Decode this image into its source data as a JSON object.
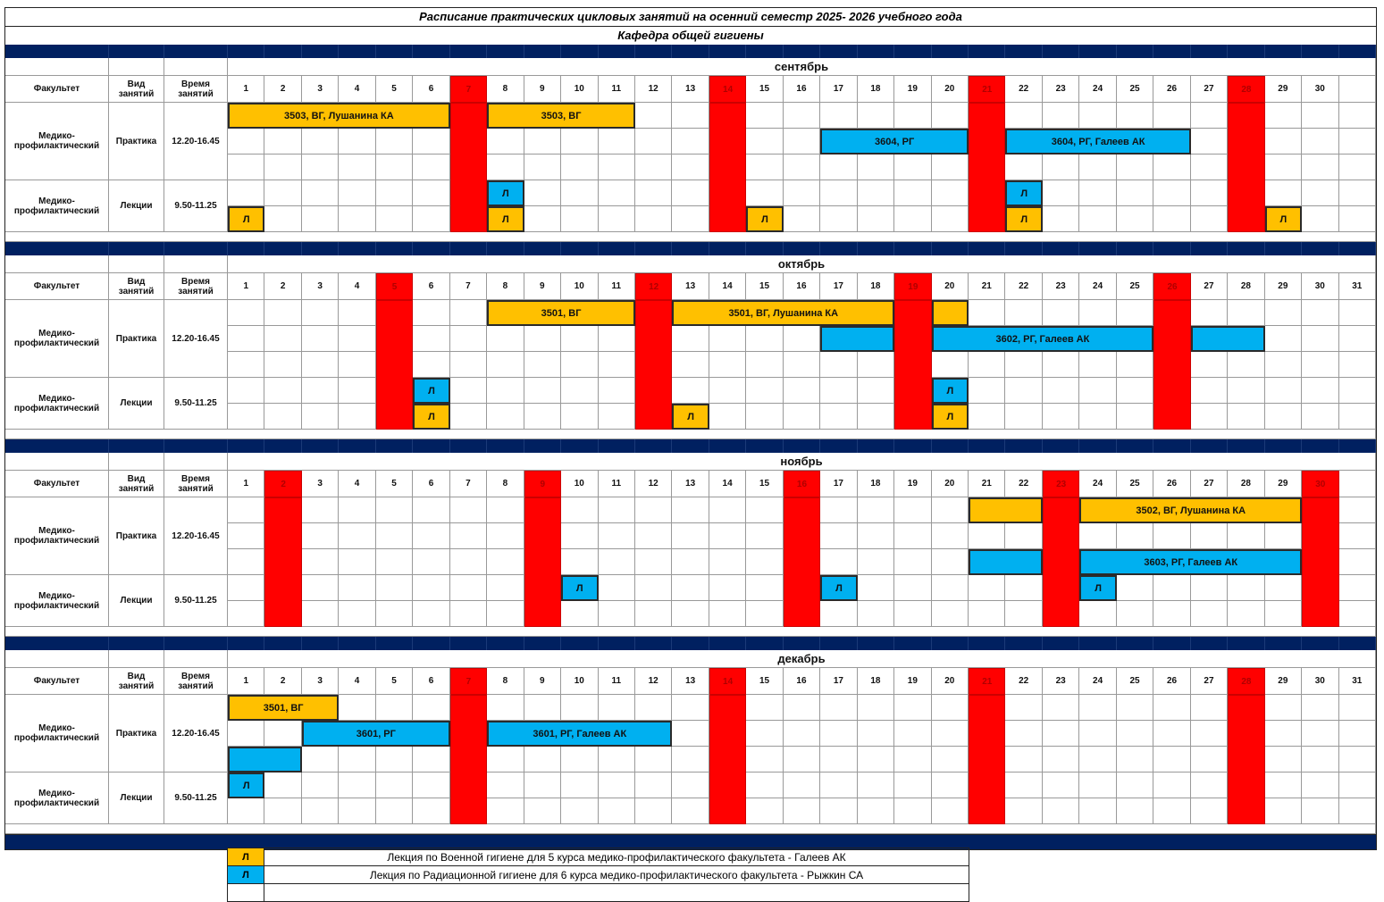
{
  "title": "Расписание практических цикловых занятий на осенний семестр 2025- 2026 учебного года",
  "subtitle": "Кафедра общей гигиены",
  "headers": {
    "faculty": "Факультет",
    "type": "Вид занятий",
    "time": "Время занятий"
  },
  "faculty_name": "Медико-профилактический",
  "practice": {
    "type": "Практика",
    "time": "12.20-16.45"
  },
  "lectures": {
    "type": "Лекции",
    "time": "9.50-11.25"
  },
  "colors": {
    "orange": "#FFC000",
    "blue": "#00B0F0",
    "weekend": "#FF0000",
    "band": "#002060"
  },
  "months": [
    {
      "name": "сентябрь",
      "days": 30,
      "weekends": [
        7,
        14,
        21,
        28
      ],
      "blocks": [
        {
          "row": 0,
          "start": 1,
          "end": 6,
          "color": "orange",
          "label": "3503, ВГ, Лушанина КА"
        },
        {
          "row": 0,
          "start": 8,
          "end": 11,
          "color": "orange",
          "label": "3503, ВГ"
        },
        {
          "row": 1,
          "start": 17,
          "end": 20,
          "color": "blue",
          "label": "3604, РГ"
        },
        {
          "row": 1,
          "start": 22,
          "end": 26,
          "color": "blue",
          "label": "3604, РГ, Галеев АК"
        },
        {
          "row": 3,
          "start": 8,
          "end": 8,
          "color": "blue",
          "label": "Л"
        },
        {
          "row": 3,
          "start": 22,
          "end": 22,
          "color": "blue",
          "label": "Л"
        },
        {
          "row": 4,
          "start": 1,
          "end": 1,
          "color": "orange",
          "label": "Л"
        },
        {
          "row": 4,
          "start": 8,
          "end": 8,
          "color": "orange",
          "label": "Л"
        },
        {
          "row": 4,
          "start": 15,
          "end": 15,
          "color": "orange",
          "label": "Л"
        },
        {
          "row": 4,
          "start": 22,
          "end": 22,
          "color": "orange",
          "label": "Л"
        },
        {
          "row": 4,
          "start": 29,
          "end": 29,
          "color": "orange",
          "label": "Л"
        }
      ]
    },
    {
      "name": "октябрь",
      "days": 31,
      "weekends": [
        5,
        12,
        19,
        26
      ],
      "blocks": [
        {
          "row": 0,
          "start": 8,
          "end": 11,
          "color": "orange",
          "label": "3501, ВГ"
        },
        {
          "row": 0,
          "start": 13,
          "end": 18,
          "color": "orange",
          "label": "3501, ВГ, Лушанина КА"
        },
        {
          "row": 0,
          "start": 20,
          "end": 20,
          "color": "orange",
          "label": ""
        },
        {
          "row": 1,
          "start": 17,
          "end": 18,
          "color": "blue",
          "label": ""
        },
        {
          "row": 1,
          "start": 20,
          "end": 25,
          "color": "blue",
          "label": "3602, РГ, Галеев АК"
        },
        {
          "row": 1,
          "start": 27,
          "end": 28,
          "color": "blue",
          "label": ""
        },
        {
          "row": 3,
          "start": 6,
          "end": 6,
          "color": "blue",
          "label": "Л"
        },
        {
          "row": 3,
          "start": 20,
          "end": 20,
          "color": "blue",
          "label": "Л"
        },
        {
          "row": 4,
          "start": 6,
          "end": 6,
          "color": "orange",
          "label": "Л"
        },
        {
          "row": 4,
          "start": 13,
          "end": 13,
          "color": "orange",
          "label": "Л"
        },
        {
          "row": 4,
          "start": 20,
          "end": 20,
          "color": "orange",
          "label": "Л"
        }
      ]
    },
    {
      "name": "ноябрь",
      "days": 30,
      "weekends": [
        2,
        9,
        16,
        23,
        30
      ],
      "blocks": [
        {
          "row": 0,
          "start": 21,
          "end": 22,
          "color": "orange",
          "label": ""
        },
        {
          "row": 0,
          "start": 24,
          "end": 29,
          "color": "orange",
          "label": "3502, ВГ, Лушанина КА"
        },
        {
          "row": 2,
          "start": 21,
          "end": 22,
          "color": "blue",
          "label": ""
        },
        {
          "row": 2,
          "start": 24,
          "end": 29,
          "color": "blue",
          "label": "3603, РГ, Галеев АК"
        },
        {
          "row": 3,
          "start": 10,
          "end": 10,
          "color": "blue",
          "label": "Л"
        },
        {
          "row": 3,
          "start": 17,
          "end": 17,
          "color": "blue",
          "label": "Л"
        },
        {
          "row": 3,
          "start": 24,
          "end": 24,
          "color": "blue",
          "label": "Л"
        }
      ]
    },
    {
      "name": "декабрь",
      "days": 31,
      "weekends": [
        7,
        14,
        21,
        28
      ],
      "blocks": [
        {
          "row": 0,
          "start": 1,
          "end": 3,
          "color": "orange",
          "label": "3501, ВГ"
        },
        {
          "row": 1,
          "start": 3,
          "end": 6,
          "color": "blue",
          "label": "3601, РГ"
        },
        {
          "row": 1,
          "start": 8,
          "end": 12,
          "color": "blue",
          "label": "3601, РГ, Галеев АК"
        },
        {
          "row": 2,
          "start": 1,
          "end": 2,
          "color": "blue",
          "label": ""
        },
        {
          "row": 3,
          "start": 1,
          "end": 1,
          "color": "blue",
          "label": "Л"
        }
      ]
    }
  ],
  "legend": [
    {
      "symbol": "Л",
      "color": "orange",
      "text": "Лекция по Военной гигиене для 5 курса медико-профилактического факультета - Галеев АК"
    },
    {
      "symbol": "Л",
      "color": "blue",
      "text": "Лекция по Радиационной гигиене для 6 курса медико-профилактического факультета - Рыжкин СА"
    },
    {
      "symbol": "",
      "color": "none",
      "text": ""
    }
  ]
}
